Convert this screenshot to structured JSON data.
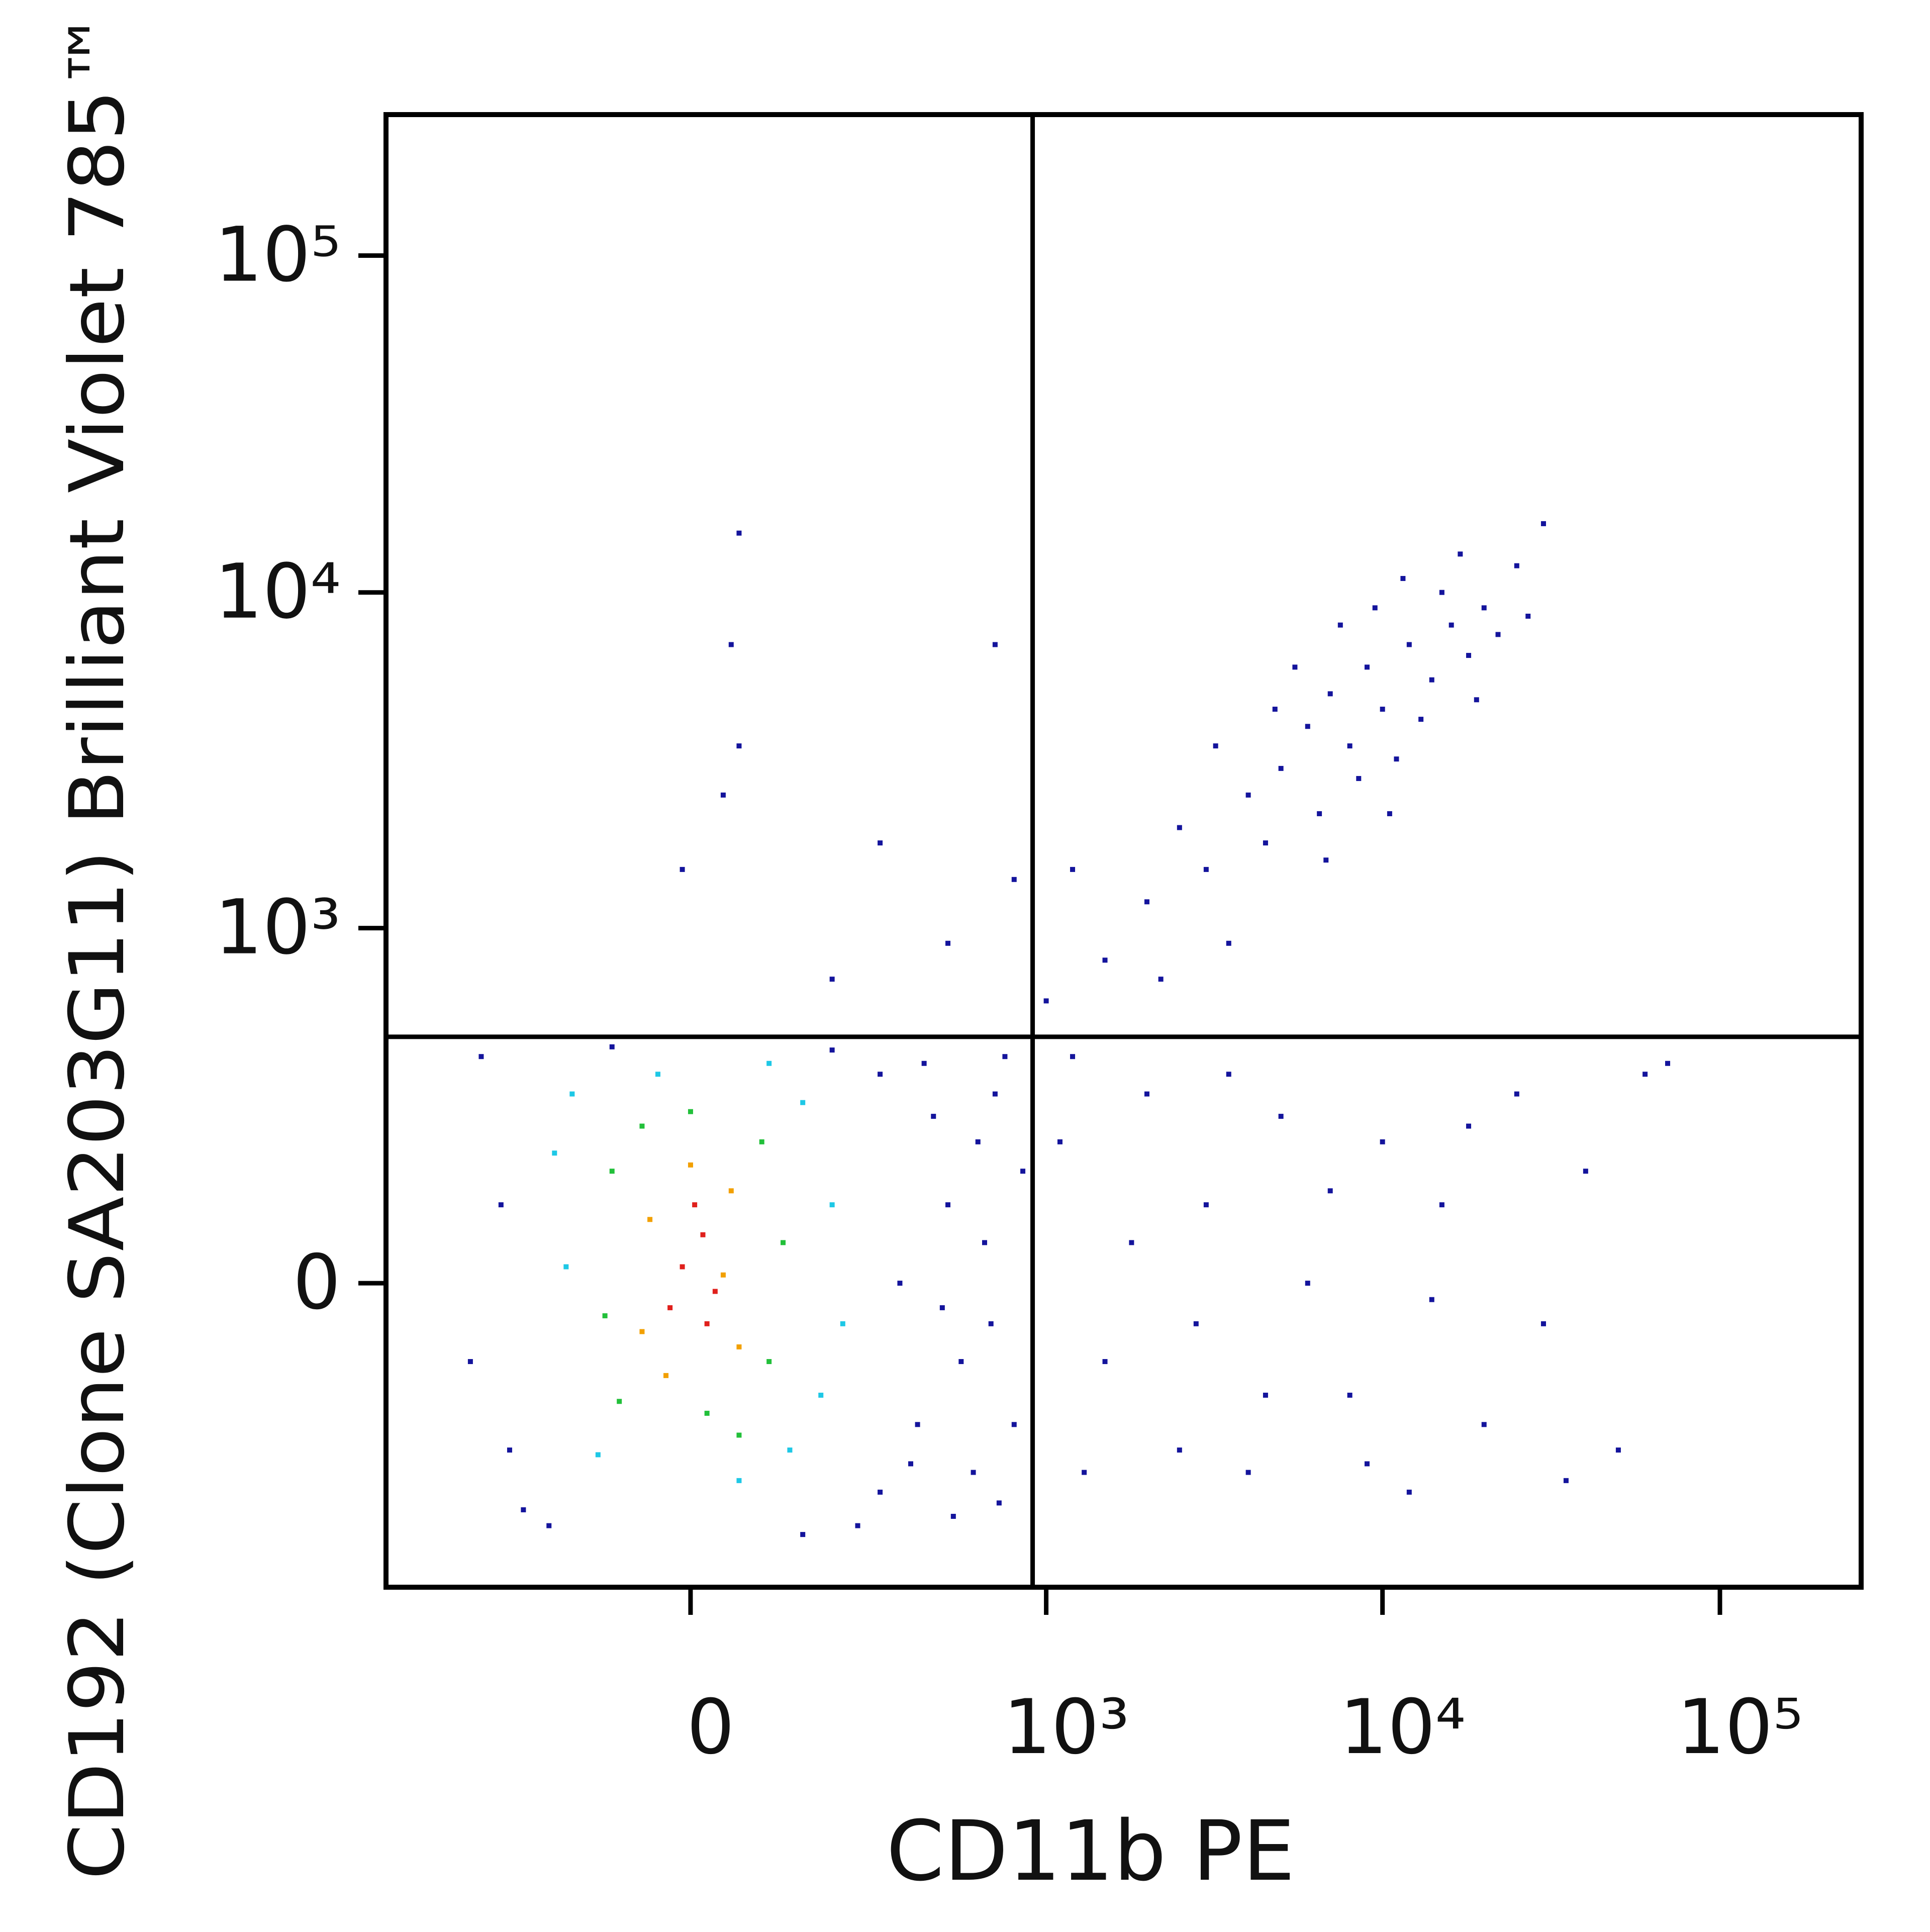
{
  "chart_data": {
    "type": "scatter",
    "x_label": "CD11b PE",
    "y_label": "CD192 (Clone SA203G11) Brilliant Violet 785™",
    "xscale": "biexponential",
    "yscale": "biexponential",
    "xlim": [
      -700,
      262144
    ],
    "ylim": [
      -700,
      262144
    ],
    "xticks": [
      {
        "value": 0,
        "label": "0"
      },
      {
        "value": 1000,
        "label": "10³"
      },
      {
        "value": 10000,
        "label": "10⁴"
      },
      {
        "value": 100000,
        "label": "10⁵"
      }
    ],
    "yticks": [
      {
        "value": 0,
        "label": "0"
      },
      {
        "value": 1000,
        "label": "10³"
      },
      {
        "value": 10000,
        "label": "10⁴"
      },
      {
        "value": 100000,
        "label": "10⁵"
      }
    ],
    "quadrant": {
      "x": 910,
      "y": 463
    },
    "series": [
      {
        "color": "#14149c",
        "x": [
          -350,
          -250,
          -300,
          300,
          400,
          500,
          600,
          700,
          250,
          350,
          450,
          550,
          650,
          800,
          -200,
          -380,
          300,
          750,
          200,
          -100,
          420,
          520,
          680,
          850,
          -280,
          150,
          380,
          620,
          480,
          720,
          1100,
          1500,
          2000,
          2500,
          3000,
          4000,
          5000,
          6000,
          8000,
          10000,
          12000,
          15000,
          20000,
          25000,
          30000,
          40000,
          50000,
          60000,
          1300,
          1800,
          2800,
          3500,
          7000,
          9000,
          18000,
          35000,
          70000,
          1200,
          4500,
          14000,
          2000,
          2500,
          3000,
          4000,
          5000,
          6000,
          7000,
          8000,
          9000,
          10000,
          12000,
          14000,
          16000,
          18000,
          20000,
          3500,
          4500,
          6500,
          8500,
          11000,
          13000,
          15000,
          22000,
          25000,
          5500,
          7500,
          9500,
          11500,
          1500,
          1200,
          1000,
          3200,
          4800,
          2200,
          6800,
          17000,
          30000,
          27000,
          10500,
          19000,
          60,
          50,
          60,
          40,
          300,
          800,
          700,
          500,
          -10,
          200
        ],
        "y": [
          400,
          -400,
          100,
          350,
          -200,
          100,
          -300,
          300,
          -450,
          0,
          250,
          -100,
          50,
          -200,
          -450,
          -100,
          -350,
          400,
          420,
          430,
          380,
          -420,
          -50,
          150,
          -250,
          -480,
          -280,
          200,
          -30,
          -380,
          200,
          -100,
          300,
          -250,
          100,
          -300,
          250,
          0,
          -150,
          200,
          -350,
          100,
          -200,
          300,
          -50,
          150,
          -250,
          350,
          -300,
          50,
          -50,
          350,
          120,
          -280,
          230,
          -320,
          380,
          400,
          -150,
          -20,
          1200,
          2000,
          1500,
          2500,
          3000,
          4000,
          5000,
          3500,
          6000,
          4500,
          7000,
          5500,
          8000,
          6500,
          9000,
          900,
          1800,
          2200,
          2800,
          3200,
          4200,
          10000,
          7500,
          12000,
          6000,
          8000,
          9000,
          11000,
          800,
          1500,
          600,
          3500,
          4500,
          700,
          1600,
          13000,
          16000,
          8500,
          2200,
          4800,
          15000,
          7000,
          3500,
          2500,
          1800,
          1400,
          7000,
          900,
          1500,
          700
        ]
      },
      {
        "color": "#1ec8e6",
        "x": [
          -160,
          150,
          180,
          -170,
          130,
          -120,
          200,
          -40,
          60,
          220,
          -190,
          100
        ],
        "y": [
          300,
          280,
          -150,
          20,
          -250,
          -260,
          100,
          350,
          -320,
          -50,
          180,
          380
        ]
      },
      {
        "color": "#22c03a",
        "x": [
          -100,
          90,
          100,
          -110,
          20,
          -60,
          120,
          -90,
          60,
          0
        ],
        "y": [
          150,
          200,
          -100,
          -40,
          -180,
          230,
          50,
          -160,
          -220,
          260
        ]
      },
      {
        "color": "#f2a000",
        "x": [
          -50,
          50,
          60,
          -60,
          0,
          40,
          -30
        ],
        "y": [
          80,
          120,
          -80,
          -60,
          160,
          10,
          -120
        ]
      },
      {
        "color": "#e0201c",
        "x": [
          -10,
          15,
          30,
          -25,
          5,
          20
        ],
        "y": [
          20,
          60,
          -10,
          -30,
          100,
          -50
        ]
      }
    ]
  }
}
